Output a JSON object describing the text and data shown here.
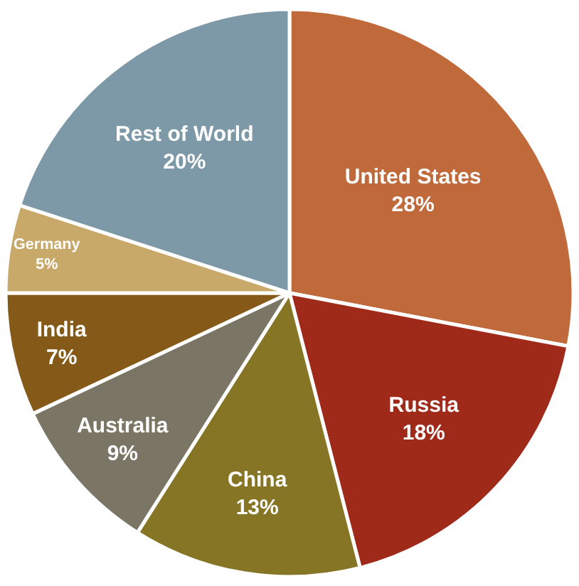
{
  "chart_data": {
    "type": "pie",
    "categories": [
      "United States",
      "Russia",
      "China",
      "Australia",
      "India",
      "Germany",
      "Rest of World"
    ],
    "values": [
      28,
      18,
      13,
      9,
      7,
      5,
      20
    ],
    "value_labels": [
      "28%",
      "18%",
      "13%",
      "9%",
      "7%",
      "5%",
      "20%"
    ],
    "colors": [
      "#c0693a",
      "#a02a1a",
      "#867524",
      "#7a7565",
      "#855a18",
      "#c9a96a",
      "#7d98a6"
    ],
    "legend": false
  }
}
